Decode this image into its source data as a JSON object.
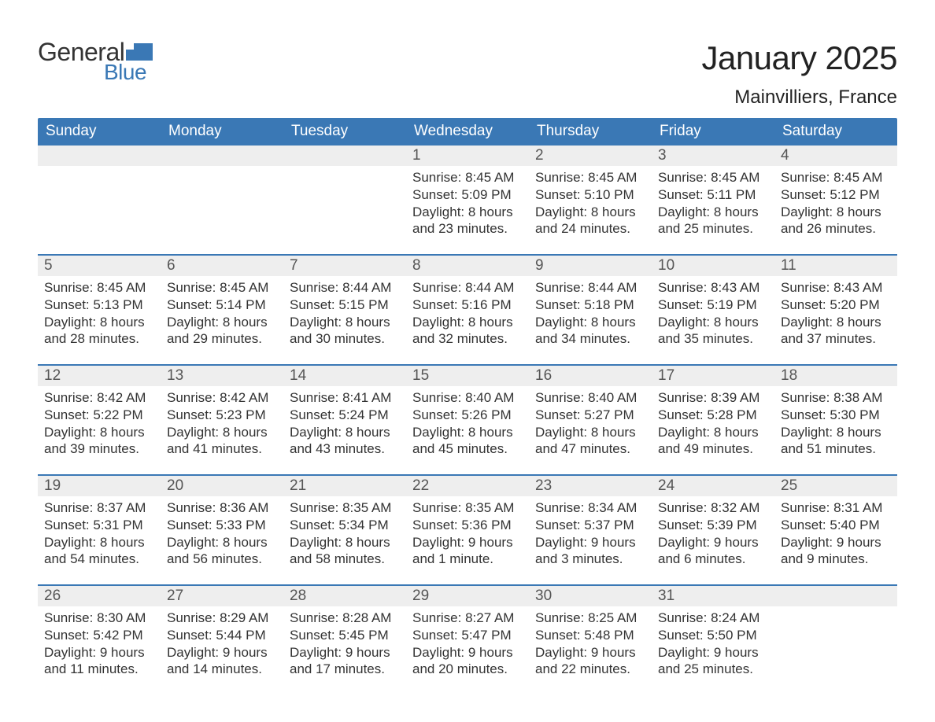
{
  "brand": {
    "text_general": "General",
    "text_blue": "Blue",
    "accent_color": "#3a78b5"
  },
  "title": "January 2025",
  "location": "Mainvilliers, France",
  "colors": {
    "header_bg": "#3a78b5",
    "header_text": "#ffffff",
    "daynum_bg": "#eeeeee",
    "daynum_text": "#555555",
    "body_text": "#333333",
    "page_bg": "#ffffff",
    "week_divider": "#3a78b5"
  },
  "typography": {
    "title_fontsize": 42,
    "location_fontsize": 24,
    "dayheader_fontsize": 19,
    "daynum_fontsize": 19,
    "body_fontsize": 17
  },
  "day_headers": [
    "Sunday",
    "Monday",
    "Tuesday",
    "Wednesday",
    "Thursday",
    "Friday",
    "Saturday"
  ],
  "weeks": [
    [
      {
        "n": "",
        "sunrise": "",
        "sunset": "",
        "daylight": ""
      },
      {
        "n": "",
        "sunrise": "",
        "sunset": "",
        "daylight": ""
      },
      {
        "n": "",
        "sunrise": "",
        "sunset": "",
        "daylight": ""
      },
      {
        "n": "1",
        "sunrise": "Sunrise: 8:45 AM",
        "sunset": "Sunset: 5:09 PM",
        "daylight": "Daylight: 8 hours and 23 minutes."
      },
      {
        "n": "2",
        "sunrise": "Sunrise: 8:45 AM",
        "sunset": "Sunset: 5:10 PM",
        "daylight": "Daylight: 8 hours and 24 minutes."
      },
      {
        "n": "3",
        "sunrise": "Sunrise: 8:45 AM",
        "sunset": "Sunset: 5:11 PM",
        "daylight": "Daylight: 8 hours and 25 minutes."
      },
      {
        "n": "4",
        "sunrise": "Sunrise: 8:45 AM",
        "sunset": "Sunset: 5:12 PM",
        "daylight": "Daylight: 8 hours and 26 minutes."
      }
    ],
    [
      {
        "n": "5",
        "sunrise": "Sunrise: 8:45 AM",
        "sunset": "Sunset: 5:13 PM",
        "daylight": "Daylight: 8 hours and 28 minutes."
      },
      {
        "n": "6",
        "sunrise": "Sunrise: 8:45 AM",
        "sunset": "Sunset: 5:14 PM",
        "daylight": "Daylight: 8 hours and 29 minutes."
      },
      {
        "n": "7",
        "sunrise": "Sunrise: 8:44 AM",
        "sunset": "Sunset: 5:15 PM",
        "daylight": "Daylight: 8 hours and 30 minutes."
      },
      {
        "n": "8",
        "sunrise": "Sunrise: 8:44 AM",
        "sunset": "Sunset: 5:16 PM",
        "daylight": "Daylight: 8 hours and 32 minutes."
      },
      {
        "n": "9",
        "sunrise": "Sunrise: 8:44 AM",
        "sunset": "Sunset: 5:18 PM",
        "daylight": "Daylight: 8 hours and 34 minutes."
      },
      {
        "n": "10",
        "sunrise": "Sunrise: 8:43 AM",
        "sunset": "Sunset: 5:19 PM",
        "daylight": "Daylight: 8 hours and 35 minutes."
      },
      {
        "n": "11",
        "sunrise": "Sunrise: 8:43 AM",
        "sunset": "Sunset: 5:20 PM",
        "daylight": "Daylight: 8 hours and 37 minutes."
      }
    ],
    [
      {
        "n": "12",
        "sunrise": "Sunrise: 8:42 AM",
        "sunset": "Sunset: 5:22 PM",
        "daylight": "Daylight: 8 hours and 39 minutes."
      },
      {
        "n": "13",
        "sunrise": "Sunrise: 8:42 AM",
        "sunset": "Sunset: 5:23 PM",
        "daylight": "Daylight: 8 hours and 41 minutes."
      },
      {
        "n": "14",
        "sunrise": "Sunrise: 8:41 AM",
        "sunset": "Sunset: 5:24 PM",
        "daylight": "Daylight: 8 hours and 43 minutes."
      },
      {
        "n": "15",
        "sunrise": "Sunrise: 8:40 AM",
        "sunset": "Sunset: 5:26 PM",
        "daylight": "Daylight: 8 hours and 45 minutes."
      },
      {
        "n": "16",
        "sunrise": "Sunrise: 8:40 AM",
        "sunset": "Sunset: 5:27 PM",
        "daylight": "Daylight: 8 hours and 47 minutes."
      },
      {
        "n": "17",
        "sunrise": "Sunrise: 8:39 AM",
        "sunset": "Sunset: 5:28 PM",
        "daylight": "Daylight: 8 hours and 49 minutes."
      },
      {
        "n": "18",
        "sunrise": "Sunrise: 8:38 AM",
        "sunset": "Sunset: 5:30 PM",
        "daylight": "Daylight: 8 hours and 51 minutes."
      }
    ],
    [
      {
        "n": "19",
        "sunrise": "Sunrise: 8:37 AM",
        "sunset": "Sunset: 5:31 PM",
        "daylight": "Daylight: 8 hours and 54 minutes."
      },
      {
        "n": "20",
        "sunrise": "Sunrise: 8:36 AM",
        "sunset": "Sunset: 5:33 PM",
        "daylight": "Daylight: 8 hours and 56 minutes."
      },
      {
        "n": "21",
        "sunrise": "Sunrise: 8:35 AM",
        "sunset": "Sunset: 5:34 PM",
        "daylight": "Daylight: 8 hours and 58 minutes."
      },
      {
        "n": "22",
        "sunrise": "Sunrise: 8:35 AM",
        "sunset": "Sunset: 5:36 PM",
        "daylight": "Daylight: 9 hours and 1 minute."
      },
      {
        "n": "23",
        "sunrise": "Sunrise: 8:34 AM",
        "sunset": "Sunset: 5:37 PM",
        "daylight": "Daylight: 9 hours and 3 minutes."
      },
      {
        "n": "24",
        "sunrise": "Sunrise: 8:32 AM",
        "sunset": "Sunset: 5:39 PM",
        "daylight": "Daylight: 9 hours and 6 minutes."
      },
      {
        "n": "25",
        "sunrise": "Sunrise: 8:31 AM",
        "sunset": "Sunset: 5:40 PM",
        "daylight": "Daylight: 9 hours and 9 minutes."
      }
    ],
    [
      {
        "n": "26",
        "sunrise": "Sunrise: 8:30 AM",
        "sunset": "Sunset: 5:42 PM",
        "daylight": "Daylight: 9 hours and 11 minutes."
      },
      {
        "n": "27",
        "sunrise": "Sunrise: 8:29 AM",
        "sunset": "Sunset: 5:44 PM",
        "daylight": "Daylight: 9 hours and 14 minutes."
      },
      {
        "n": "28",
        "sunrise": "Sunrise: 8:28 AM",
        "sunset": "Sunset: 5:45 PM",
        "daylight": "Daylight: 9 hours and 17 minutes."
      },
      {
        "n": "29",
        "sunrise": "Sunrise: 8:27 AM",
        "sunset": "Sunset: 5:47 PM",
        "daylight": "Daylight: 9 hours and 20 minutes."
      },
      {
        "n": "30",
        "sunrise": "Sunrise: 8:25 AM",
        "sunset": "Sunset: 5:48 PM",
        "daylight": "Daylight: 9 hours and 22 minutes."
      },
      {
        "n": "31",
        "sunrise": "Sunrise: 8:24 AM",
        "sunset": "Sunset: 5:50 PM",
        "daylight": "Daylight: 9 hours and 25 minutes."
      },
      {
        "n": "",
        "sunrise": "",
        "sunset": "",
        "daylight": ""
      }
    ]
  ]
}
